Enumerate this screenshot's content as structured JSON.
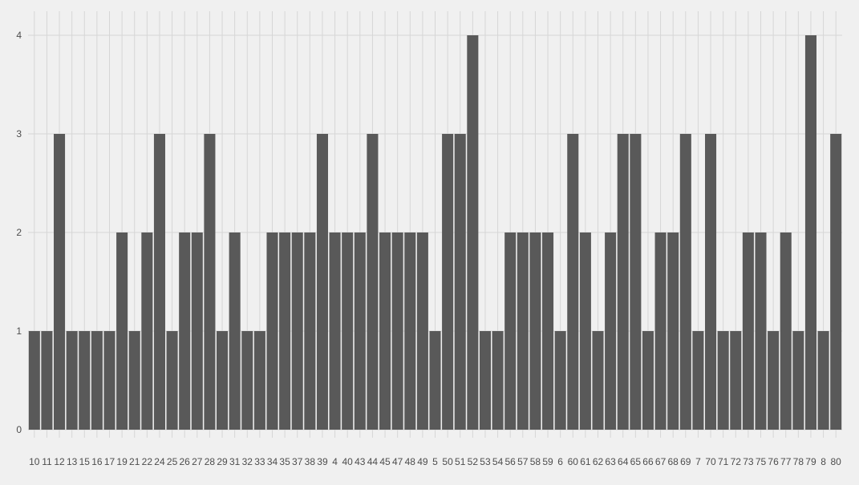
{
  "chart_data": {
    "type": "bar",
    "title": "",
    "xlabel": "",
    "ylabel": "",
    "ylim": [
      0,
      4
    ],
    "yticks": [
      0,
      1,
      2,
      3,
      4
    ],
    "grid": true,
    "colors": {
      "background": "#f0f0f0",
      "bar": "#595959",
      "grid": "#d6d6d6",
      "text": "#4d4d4d"
    },
    "categories": [
      "10",
      "11",
      "12",
      "13",
      "15",
      "16",
      "17",
      "19",
      "21",
      "22",
      "24",
      "25",
      "26",
      "27",
      "28",
      "29",
      "31",
      "32",
      "33",
      "34",
      "35",
      "37",
      "38",
      "39",
      "4",
      "40",
      "43",
      "44",
      "45",
      "47",
      "48",
      "49",
      "5",
      "50",
      "51",
      "52",
      "53",
      "54",
      "56",
      "57",
      "58",
      "59",
      "6",
      "60",
      "61",
      "62",
      "63",
      "64",
      "65",
      "66",
      "67",
      "68",
      "69",
      "7",
      "70",
      "71",
      "72",
      "73",
      "75",
      "76",
      "77",
      "78",
      "79",
      "8",
      "80"
    ],
    "values": [
      1,
      1,
      3,
      1,
      1,
      1,
      1,
      2,
      1,
      2,
      3,
      1,
      2,
      2,
      3,
      1,
      2,
      1,
      1,
      2,
      2,
      2,
      2,
      3,
      2,
      2,
      2,
      3,
      2,
      2,
      2,
      2,
      1,
      3,
      3,
      4,
      1,
      1,
      2,
      2,
      2,
      2,
      1,
      3,
      2,
      1,
      2,
      3,
      3,
      1,
      2,
      2,
      3,
      1,
      3,
      1,
      1,
      2,
      2,
      1,
      2,
      1,
      4,
      1,
      3
    ]
  }
}
